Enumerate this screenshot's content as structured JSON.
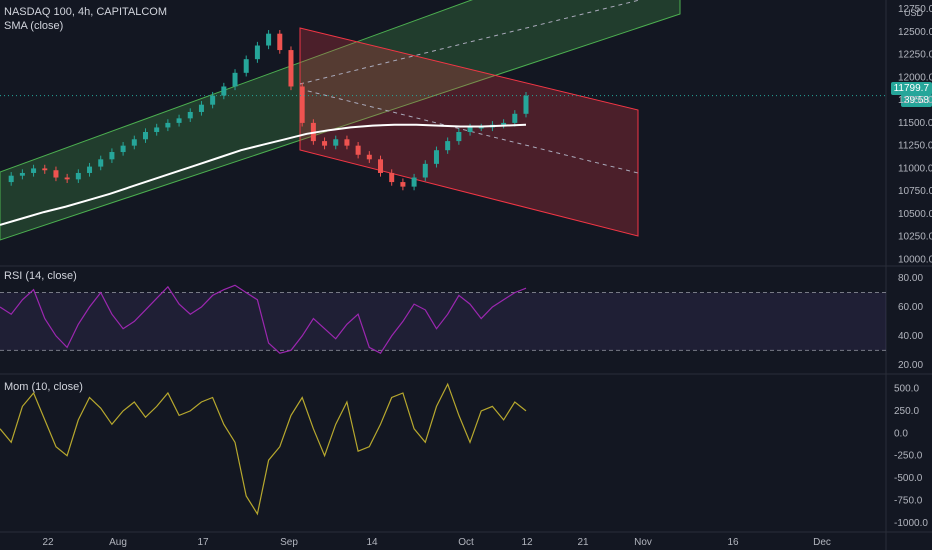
{
  "header": {
    "symbol": "NASDAQ 100, 4h, CAPITALCOM",
    "indicator": "SMA (close)",
    "currency": "USD"
  },
  "price_badge": {
    "value": "11799.7",
    "countdown": "39:58",
    "color": "#26a69a"
  },
  "panes": {
    "rsi_label": "RSI (14, close)",
    "mom_label": "Mom (10, close)"
  },
  "colors": {
    "background": "#131722",
    "candle_up": "#26a69a",
    "candle_down": "#ef5350",
    "sma_white": "#ffffff",
    "up_channel": "#4caf50",
    "down_channel": "#f23645",
    "rsi_line": "#9c27b0",
    "mom_line": "#b7a82e"
  },
  "chart_data": [
    {
      "type": "line",
      "title": "NASDAQ 100, 4h, CAPITALCOM",
      "x_ticks": [
        "22",
        "Aug",
        "17",
        "Sep",
        "14",
        "Oct",
        "12",
        "21",
        "Nov",
        "16",
        "Dec"
      ],
      "y_ticks": [
        "12750.0",
        "12500.0",
        "12250.0",
        "12000.0",
        "11750.0",
        "11500.0",
        "11250.0",
        "11000.0",
        "10750.0",
        "10500.0",
        "10250.0",
        "10000.0"
      ],
      "ylim": [
        9950,
        12850
      ],
      "series": [
        {
          "values": [
            10850,
            10920,
            10950,
            11000,
            10980,
            10900,
            10880,
            10950,
            11020,
            11100,
            11180,
            11250,
            11320,
            11400,
            11450,
            11500,
            11550,
            11620,
            11700,
            11800,
            11900,
            12050,
            12200,
            12350,
            12480,
            12300,
            11900,
            11500,
            11300,
            11250,
            11320,
            11250,
            11150,
            11100,
            10950,
            10850,
            10800,
            10900,
            11050,
            11200,
            11300,
            11400,
            11450,
            11450,
            11480,
            11500,
            11600,
            11800
          ]
        },
        {
          "name": "SMA (close)",
          "values": [
            10380,
            10450,
            10520,
            10580,
            10650,
            10720,
            10800,
            10880,
            10960,
            11040,
            11120,
            11200,
            11260,
            11320,
            11380,
            11420,
            11450,
            11470,
            11480,
            11480,
            11470,
            11460,
            11460,
            11470,
            11480
          ]
        }
      ],
      "annotations": [
        "rising green channel",
        "falling red channel",
        "last price 11799.7"
      ]
    },
    {
      "type": "line",
      "title": "RSI (14, close)",
      "y_ticks": [
        "80.00",
        "60.00",
        "40.00",
        "20.00"
      ],
      "ylim": [
        15,
        87
      ],
      "bands": [
        30,
        70
      ],
      "values": [
        60,
        55,
        65,
        72,
        52,
        40,
        32,
        48,
        60,
        70,
        55,
        45,
        50,
        58,
        66,
        74,
        62,
        55,
        60,
        68,
        72,
        75,
        70,
        65,
        35,
        28,
        30,
        40,
        52,
        45,
        38,
        48,
        55,
        32,
        28,
        40,
        50,
        62,
        58,
        45,
        55,
        68,
        62,
        52,
        60,
        65,
        70,
        73
      ]
    },
    {
      "type": "line",
      "title": "Mom (10, close)",
      "y_ticks": [
        "500.0",
        "250.0",
        "0.0",
        "-250.0",
        "-500.0",
        "-750.0",
        "-1000.0"
      ],
      "ylim": [
        -1080,
        640
      ],
      "values": [
        50,
        -100,
        300,
        450,
        150,
        -150,
        -250,
        150,
        400,
        280,
        100,
        250,
        350,
        180,
        300,
        450,
        200,
        250,
        350,
        400,
        100,
        -100,
        -700,
        -900,
        -300,
        -150,
        200,
        400,
        50,
        -250,
        100,
        350,
        -200,
        -150,
        100,
        400,
        450,
        50,
        -100,
        300,
        550,
        200,
        -100,
        250,
        300,
        150,
        350,
        250
      ]
    }
  ]
}
